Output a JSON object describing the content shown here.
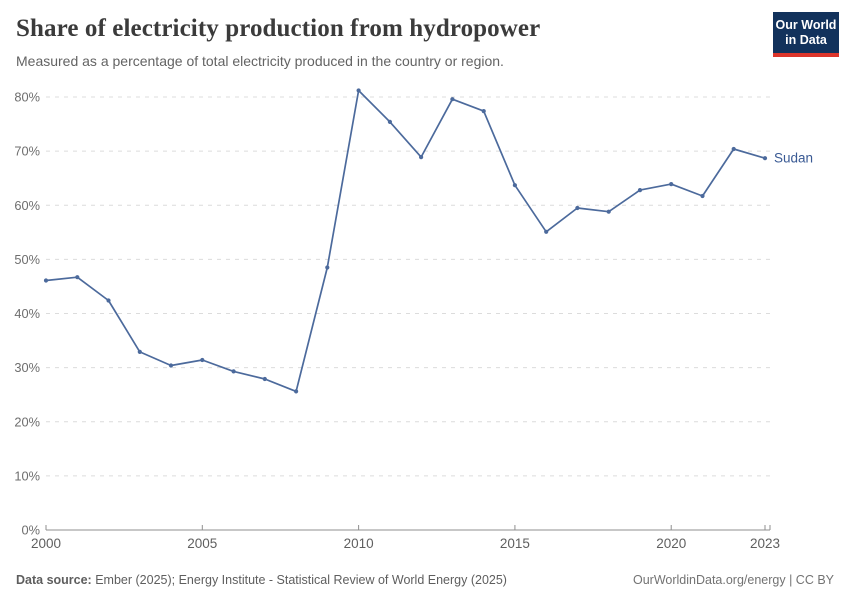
{
  "header": {
    "title": "Share of electricity production from hydropower",
    "subtitle": "Measured as a percentage of total electricity produced in the country or region."
  },
  "logo": {
    "line1": "Our World",
    "line2": "in Data"
  },
  "footer": {
    "data_source_label": "Data source:",
    "data_source_text": "Ember (2025); Energy Institute - Statistical Review of World Energy (2025)",
    "credit": "OurWorldinData.org/energy | CC BY"
  },
  "colors": {
    "line": "#4C6A9C",
    "series_label": "#3a5a94",
    "gridline": "#dcdcdc",
    "axis": "#8f8f8f",
    "y_tick_label": "#6e6e6e",
    "x_tick_label": "#5f5f5f",
    "logo_bg": "#12325c",
    "logo_red": "#dc352b"
  },
  "chart_data": {
    "type": "line",
    "title": "Share of electricity production from hydropower",
    "subtitle": "Measured as a percentage of total electricity produced in the country or region.",
    "xlabel": "",
    "ylabel": "",
    "x": [
      2000,
      2001,
      2002,
      2003,
      2004,
      2005,
      2006,
      2007,
      2008,
      2009,
      2010,
      2011,
      2012,
      2013,
      2014,
      2015,
      2016,
      2017,
      2018,
      2019,
      2020,
      2021,
      2022,
      2023
    ],
    "series": [
      {
        "name": "Sudan",
        "color": "#4C6A9C",
        "values": [
          46.1,
          46.7,
          42.4,
          32.9,
          30.4,
          31.4,
          29.3,
          27.9,
          25.6,
          48.5,
          81.2,
          75.4,
          68.9,
          79.6,
          77.4,
          63.7,
          55.1,
          59.5,
          58.8,
          62.8,
          63.9,
          61.7,
          70.4,
          68.7
        ]
      }
    ],
    "ylim": [
      0,
      85
    ],
    "yticks": [
      0,
      10,
      20,
      30,
      40,
      50,
      60,
      70,
      80
    ],
    "ytick_suffix": "%",
    "xticks": [
      2000,
      2005,
      2010,
      2015,
      2020,
      2023
    ],
    "grid": "horizontal-dashed",
    "legend_position": "end-of-line-label",
    "end_label": "Sudan"
  }
}
